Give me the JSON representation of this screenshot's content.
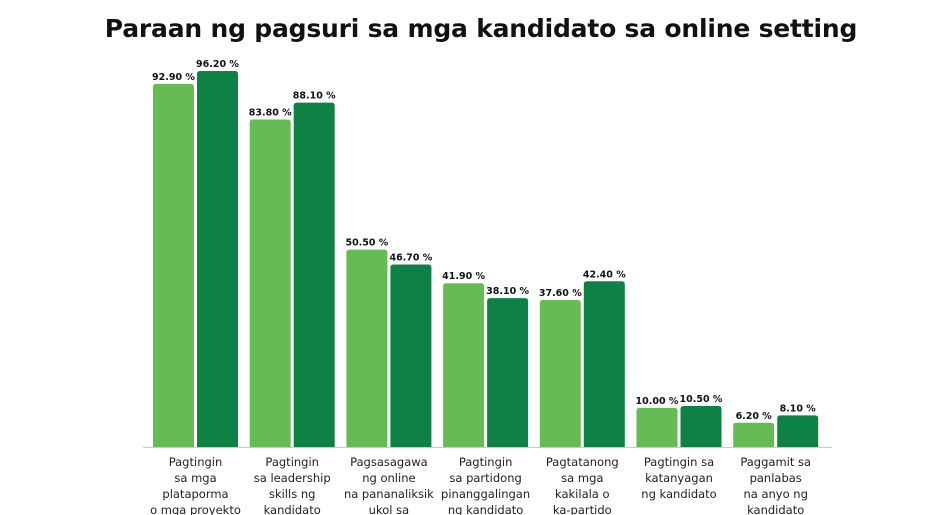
{
  "chart_data": {
    "type": "bar",
    "title": "Paraan ng pagsuri sa mga kandidato sa online setting",
    "xlabel": "",
    "ylabel": "",
    "ylim": [
      0,
      100
    ],
    "grid": false,
    "legend": "none",
    "categories": [
      [
        "Pagtingin",
        "sa mga",
        "plataporma",
        "o mga proyekto"
      ],
      [
        "Pagtingin",
        "sa leadership",
        "skills ng",
        "kandidato"
      ],
      [
        "Pagsasagawa",
        "ng online",
        "na pananaliksik",
        "ukol sa"
      ],
      [
        "Pagtingin",
        "sa partidong",
        "pinanggalingan",
        "ng kandidato"
      ],
      [
        "Pagtatanong",
        "sa mga",
        "kakilala o",
        "ka-partido"
      ],
      [
        "Pagtingin sa",
        "katanyagan",
        "ng kandidato"
      ],
      [
        "Paggamit sa",
        "panlabas",
        "na anyo ng",
        "kandidato"
      ]
    ],
    "series": [
      {
        "name": "series-1",
        "color": "#66bb55",
        "values": [
          92.9,
          83.8,
          50.5,
          41.9,
          37.6,
          10.0,
          6.2
        ],
        "labels": [
          "92.90 %",
          "83.80 %",
          "50.50 %",
          "41.90 %",
          "37.60 %",
          "10.00 %",
          "6.20 %"
        ]
      },
      {
        "name": "series-2",
        "color": "#0e8244",
        "values": [
          96.2,
          88.1,
          46.7,
          38.1,
          42.4,
          10.5,
          8.1
        ],
        "labels": [
          "96.20 %",
          "88.10 %",
          "46.70 %",
          "38.10 %",
          "42.40 %",
          "10.50 %",
          "8.10 %"
        ]
      }
    ],
    "axis_color": "#c9c9c9"
  }
}
